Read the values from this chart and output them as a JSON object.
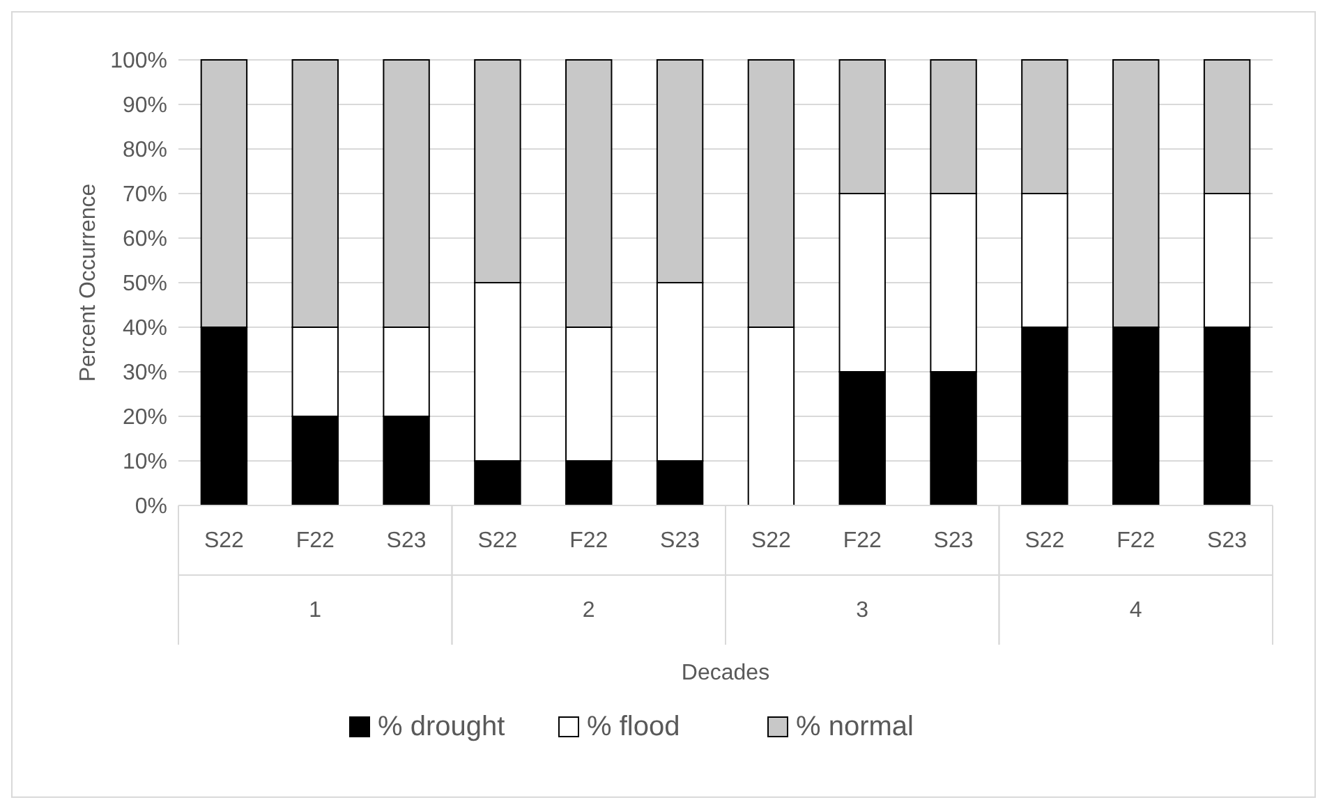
{
  "chart_data": {
    "type": "bar",
    "stacked": true,
    "xlabel": "Decades",
    "ylabel": "Percent Occurrence",
    "categories": [
      "S22",
      "F22",
      "S23",
      "S22",
      "F22",
      "S23",
      "S22",
      "F22",
      "S23",
      "S22",
      "F22",
      "S23"
    ],
    "annotations": [
      "1",
      "2",
      "3",
      "4"
    ],
    "series": [
      {
        "name": "% drought",
        "color": "#000000",
        "values": [
          40,
          20,
          20,
          10,
          10,
          10,
          0,
          30,
          30,
          40,
          40,
          40
        ]
      },
      {
        "name": "% flood",
        "color": "#ffffff",
        "values": [
          0,
          20,
          20,
          40,
          30,
          40,
          40,
          40,
          40,
          30,
          0,
          30
        ]
      },
      {
        "name": "% normal",
        "color": "#c8c8c8",
        "values": [
          60,
          60,
          60,
          50,
          60,
          50,
          60,
          30,
          30,
          30,
          60,
          30
        ]
      }
    ],
    "ylim": [
      0,
      100
    ],
    "yticks": [
      {
        "value": 0,
        "label": "0%"
      },
      {
        "value": 10,
        "label": "10%"
      },
      {
        "value": 20,
        "label": "20%"
      },
      {
        "value": 30,
        "label": "30%"
      },
      {
        "value": 40,
        "label": "40%"
      },
      {
        "value": 50,
        "label": "50%"
      },
      {
        "value": 60,
        "label": "60%"
      },
      {
        "value": 70,
        "label": "70%"
      },
      {
        "value": 80,
        "label": "80%"
      },
      {
        "value": 90,
        "label": "90%"
      },
      {
        "value": 100,
        "label": "100%"
      }
    ],
    "grid": "y",
    "legend": "bottom"
  }
}
